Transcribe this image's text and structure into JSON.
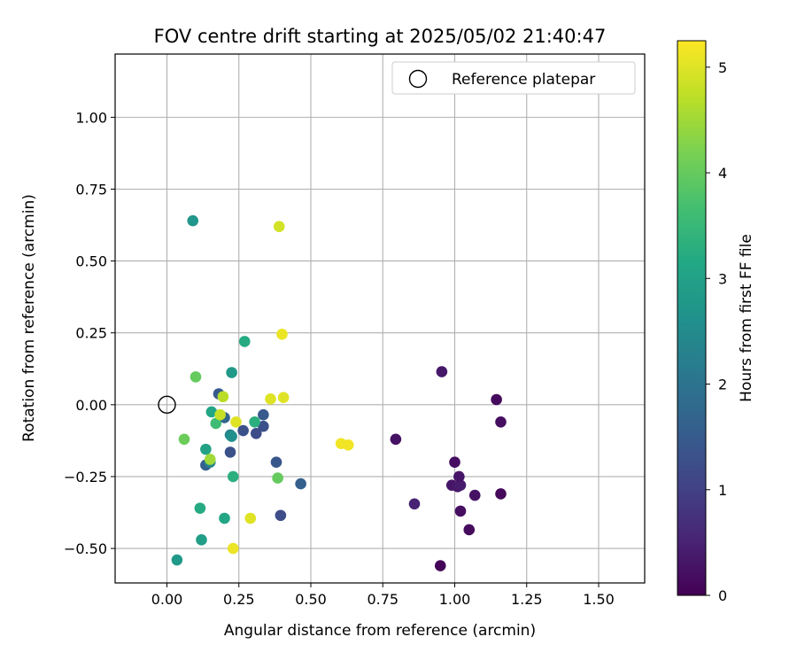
{
  "chart_data": {
    "type": "scatter",
    "title": "FOV centre drift starting at 2025/05/02 21:40:47",
    "xlabel": "Angular distance from reference (arcmin)",
    "ylabel": "Rotation from reference (arcmin)",
    "xlim": [
      -0.18,
      1.66
    ],
    "ylim": [
      -0.62,
      1.22
    ],
    "xticks": [
      "0.00",
      "0.25",
      "0.50",
      "0.75",
      "1.00",
      "1.25",
      "1.50"
    ],
    "xtick_values": [
      0,
      0.25,
      0.5,
      0.75,
      1.0,
      1.25,
      1.5
    ],
    "yticks": [
      "1.00",
      "0.75",
      "0.50",
      "0.25",
      "0.00",
      "−0.25",
      "−0.50"
    ],
    "ytick_values": [
      1.0,
      0.75,
      0.5,
      0.25,
      0.0,
      -0.25,
      -0.5
    ],
    "grid": true,
    "legend": {
      "position": "top-right",
      "entries": [
        "Reference platepar"
      ]
    },
    "reference_point": {
      "x": 0.0,
      "y": 0.0
    },
    "colorbar": {
      "label": "Hours from first FF file",
      "range": [
        0,
        5.25
      ],
      "ticks": [
        "0",
        "1",
        "2",
        "3",
        "4",
        "5"
      ],
      "tick_values": [
        0,
        1,
        2,
        3,
        4,
        5
      ],
      "colormap": "viridis"
    },
    "points": [
      {
        "x": 0.95,
        "y": -0.56,
        "h": 0.05
      },
      {
        "x": 1.16,
        "y": -0.31,
        "h": 0.1
      },
      {
        "x": 1.05,
        "y": -0.435,
        "h": 0.15
      },
      {
        "x": 1.02,
        "y": -0.37,
        "h": 0.2
      },
      {
        "x": 1.07,
        "y": -0.315,
        "h": 0.25
      },
      {
        "x": 0.99,
        "y": -0.28,
        "h": 0.3
      },
      {
        "x": 1.01,
        "y": -0.285,
        "h": 0.35
      },
      {
        "x": 1.02,
        "y": -0.28,
        "h": 0.4
      },
      {
        "x": 1.0,
        "y": -0.2,
        "h": 0.2
      },
      {
        "x": 1.015,
        "y": -0.25,
        "h": 0.3
      },
      {
        "x": 0.795,
        "y": -0.12,
        "h": 0.25
      },
      {
        "x": 0.86,
        "y": -0.345,
        "h": 0.5
      },
      {
        "x": 0.955,
        "y": 0.115,
        "h": 0.35
      },
      {
        "x": 1.145,
        "y": 0.018,
        "h": 0.15
      },
      {
        "x": 1.16,
        "y": -0.06,
        "h": 0.2
      },
      {
        "x": 0.395,
        "y": -0.385,
        "h": 1.2
      },
      {
        "x": 0.465,
        "y": -0.275,
        "h": 1.6
      },
      {
        "x": 0.38,
        "y": -0.2,
        "h": 1.4
      },
      {
        "x": 0.335,
        "y": -0.075,
        "h": 1.3
      },
      {
        "x": 0.335,
        "y": -0.035,
        "h": 1.5
      },
      {
        "x": 0.31,
        "y": -0.1,
        "h": 1.2
      },
      {
        "x": 0.265,
        "y": -0.09,
        "h": 1.3
      },
      {
        "x": 0.22,
        "y": -0.165,
        "h": 1.3
      },
      {
        "x": 0.18,
        "y": 0.038,
        "h": 1.5
      },
      {
        "x": 0.2,
        "y": -0.045,
        "h": 1.7
      },
      {
        "x": 0.135,
        "y": -0.21,
        "h": 1.6
      },
      {
        "x": 0.15,
        "y": -0.2,
        "h": 2.4
      },
      {
        "x": 0.22,
        "y": -0.105,
        "h": 2.3
      },
      {
        "x": 0.225,
        "y": -0.11,
        "h": 2.6
      },
      {
        "x": 0.09,
        "y": 0.64,
        "h": 2.75
      },
      {
        "x": 0.035,
        "y": -0.54,
        "h": 2.8
      },
      {
        "x": 0.12,
        "y": -0.47,
        "h": 2.9
      },
      {
        "x": 0.2,
        "y": -0.395,
        "h": 3.1
      },
      {
        "x": 0.115,
        "y": -0.36,
        "h": 3.2
      },
      {
        "x": 0.23,
        "y": -0.25,
        "h": 3.3
      },
      {
        "x": 0.225,
        "y": 0.112,
        "h": 2.8
      },
      {
        "x": 0.27,
        "y": 0.22,
        "h": 3.2
      },
      {
        "x": 0.135,
        "y": -0.155,
        "h": 3.0
      },
      {
        "x": 0.155,
        "y": -0.025,
        "h": 3.1
      },
      {
        "x": 0.305,
        "y": -0.06,
        "h": 3.3
      },
      {
        "x": 0.17,
        "y": -0.065,
        "h": 3.6
      },
      {
        "x": 0.06,
        "y": -0.12,
        "h": 4.05
      },
      {
        "x": 0.1,
        "y": 0.097,
        "h": 4.0
      },
      {
        "x": 0.385,
        "y": -0.255,
        "h": 4.0
      },
      {
        "x": 0.15,
        "y": -0.19,
        "h": 4.5
      },
      {
        "x": 0.195,
        "y": 0.028,
        "h": 4.7
      },
      {
        "x": 0.185,
        "y": -0.035,
        "h": 4.8
      },
      {
        "x": 0.24,
        "y": -0.06,
        "h": 5.0
      },
      {
        "x": 0.29,
        "y": -0.395,
        "h": 5.0
      },
      {
        "x": 0.23,
        "y": -0.5,
        "h": 5.1
      },
      {
        "x": 0.36,
        "y": 0.02,
        "h": 5.0
      },
      {
        "x": 0.405,
        "y": 0.025,
        "h": 5.0
      },
      {
        "x": 0.39,
        "y": 0.62,
        "h": 4.9
      },
      {
        "x": 0.4,
        "y": 0.245,
        "h": 5.1
      },
      {
        "x": 0.605,
        "y": -0.135,
        "h": 5.15
      },
      {
        "x": 0.63,
        "y": -0.14,
        "h": 5.15
      }
    ]
  }
}
